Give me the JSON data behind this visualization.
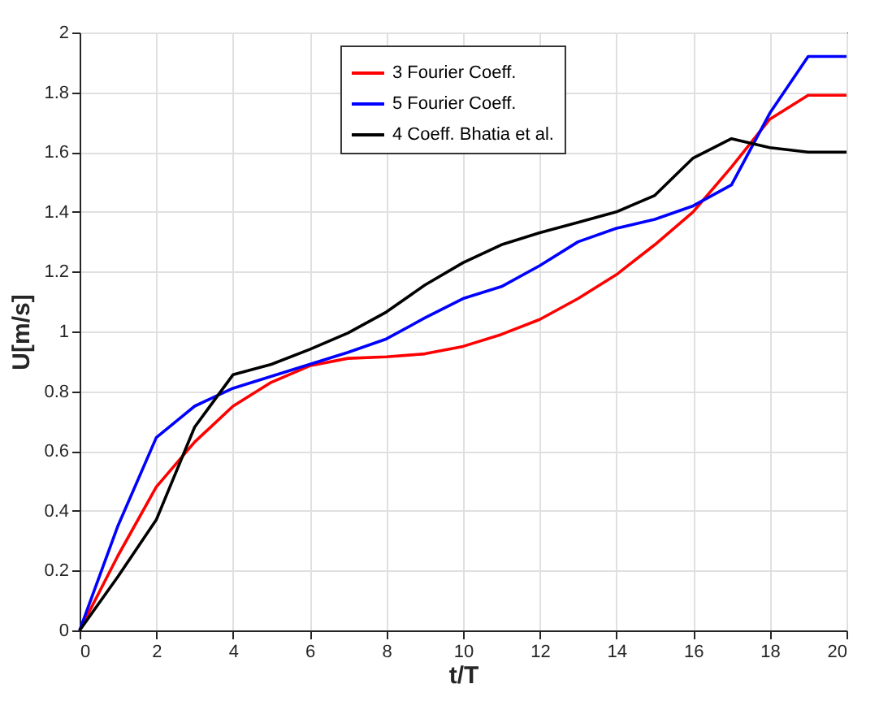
{
  "chart_data": {
    "type": "line",
    "xlabel": "t/T",
    "ylabel": "U[m/s]",
    "x": [
      0,
      1,
      2,
      3,
      4,
      5,
      6,
      7,
      8,
      9,
      10,
      11,
      12,
      13,
      14,
      15,
      16,
      17,
      18,
      19,
      20
    ],
    "series": [
      {
        "name": "3 Fourier Coeff.",
        "color": "#ff0000",
        "values": [
          0,
          0.25,
          0.48,
          0.63,
          0.75,
          0.83,
          0.885,
          0.91,
          0.915,
          0.925,
          0.95,
          0.99,
          1.04,
          1.11,
          1.19,
          1.29,
          1.4,
          1.55,
          1.71,
          1.79,
          1.79
        ]
      },
      {
        "name": "5 Fourier Coeff.",
        "color": "#0000ff",
        "values": [
          0,
          0.35,
          0.645,
          0.75,
          0.81,
          0.85,
          0.89,
          0.93,
          0.975,
          1.045,
          1.11,
          1.15,
          1.22,
          1.3,
          1.345,
          1.375,
          1.42,
          1.49,
          1.73,
          1.92,
          1.92
        ]
      },
      {
        "name": "4 Coeff. Bhatia et al.",
        "color": "#000000",
        "values": [
          0,
          0.18,
          0.37,
          0.68,
          0.855,
          0.89,
          0.94,
          0.995,
          1.065,
          1.155,
          1.23,
          1.29,
          1.33,
          1.365,
          1.4,
          1.455,
          1.58,
          1.645,
          1.615,
          1.6,
          1.6
        ]
      }
    ],
    "xlim": [
      0,
      20
    ],
    "xticks": [
      0,
      2,
      4,
      6,
      8,
      10,
      12,
      14,
      16,
      18,
      20
    ],
    "ylim": [
      0,
      2
    ],
    "yticks": [
      0,
      0.2,
      0.4,
      0.6,
      0.8,
      1,
      1.2,
      1.4,
      1.6,
      1.8,
      2
    ],
    "grid": true,
    "legend": "top",
    "marker": "none",
    "line_style": "solid"
  }
}
